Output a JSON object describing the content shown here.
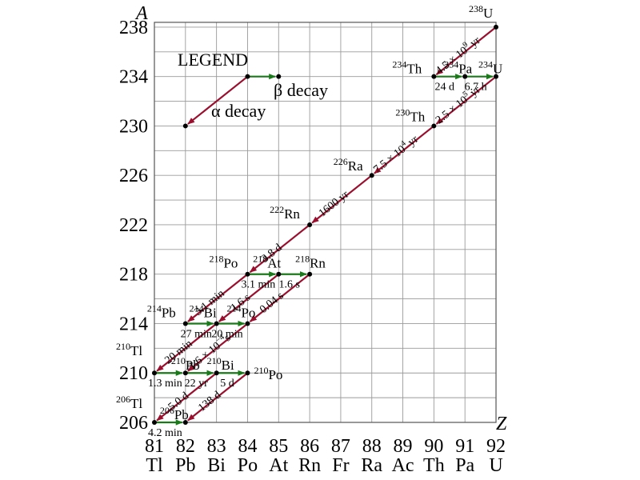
{
  "chart_data": {
    "type": "diagram",
    "title": "",
    "xlabel": "Z",
    "ylabel": "A",
    "xlim": [
      81,
      92
    ],
    "ylim": [
      206,
      238
    ],
    "x_ticks": [
      {
        "z": 81,
        "symbol": "Tl"
      },
      {
        "z": 82,
        "symbol": "Pb"
      },
      {
        "z": 83,
        "symbol": "Bi"
      },
      {
        "z": 84,
        "symbol": "Po"
      },
      {
        "z": 85,
        "symbol": "At"
      },
      {
        "z": 86,
        "symbol": "Rn"
      },
      {
        "z": 87,
        "symbol": "Fr"
      },
      {
        "z": 88,
        "symbol": "Ra"
      },
      {
        "z": 89,
        "symbol": "Ac"
      },
      {
        "z": 90,
        "symbol": "Th"
      },
      {
        "z": 91,
        "symbol": "Pa"
      },
      {
        "z": 92,
        "symbol": "U"
      }
    ],
    "y_ticks": [
      206,
      210,
      214,
      218,
      222,
      226,
      230,
      234,
      238
    ],
    "colors": {
      "alpha": "#9b0f2e",
      "beta": "#1a7a1a",
      "grid": "#9a9a9a",
      "point": "#000000"
    },
    "legend": {
      "title": "LEGEND",
      "alpha": "α decay",
      "beta": "β decay",
      "alpha_from": [
        84,
        234
      ],
      "alpha_to": [
        82,
        230
      ],
      "beta_from": [
        84,
        234
      ],
      "beta_to": [
        85,
        234
      ]
    },
    "nuclides": [
      {
        "mass": "238",
        "sym": "U",
        "z": 92,
        "a": 238,
        "dx": -34,
        "dy": -12
      },
      {
        "mass": "234",
        "sym": "Th",
        "z": 90,
        "a": 234,
        "dx": -52,
        "dy": -4
      },
      {
        "mass": "234",
        "sym": "Pa",
        "z": 91,
        "a": 234,
        "dx": -26,
        "dy": -4
      },
      {
        "mass": "234",
        "sym": "U",
        "z": 92,
        "a": 234,
        "dx": -22,
        "dy": -4
      },
      {
        "mass": "230",
        "sym": "Th",
        "z": 90,
        "a": 230,
        "dx": -48,
        "dy": -6
      },
      {
        "mass": "226",
        "sym": "Ra",
        "z": 88,
        "a": 226,
        "dx": -48,
        "dy": -6
      },
      {
        "mass": "222",
        "sym": "Rn",
        "z": 86,
        "a": 222,
        "dx": -50,
        "dy": -8
      },
      {
        "mass": "218",
        "sym": "Po",
        "z": 84,
        "a": 218,
        "dx": -48,
        "dy": -8
      },
      {
        "mass": "218",
        "sym": "At",
        "z": 85,
        "a": 218,
        "dx": -32,
        "dy": -8
      },
      {
        "mass": "218",
        "sym": "Rn",
        "z": 86,
        "a": 218,
        "dx": -18,
        "dy": -8
      },
      {
        "mass": "214",
        "sym": "Pb",
        "z": 82,
        "a": 214,
        "dx": -48,
        "dy": -8
      },
      {
        "mass": "214",
        "sym": "Bi",
        "z": 83,
        "a": 214,
        "dx": -34,
        "dy": -8
      },
      {
        "mass": "214",
        "sym": "Po",
        "z": 84,
        "a": 214,
        "dx": -26,
        "dy": -8
      },
      {
        "mass": "210",
        "sym": "Tl",
        "z": 81,
        "a": 210,
        "dx": -48,
        "dy": -22
      },
      {
        "mass": "210",
        "sym": "Pb",
        "z": 82,
        "a": 210,
        "dx": -18,
        "dy": -4
      },
      {
        "mass": "210",
        "sym": "Bi",
        "z": 83,
        "a": 210,
        "dx": -12,
        "dy": -4
      },
      {
        "mass": "210",
        "sym": "Po",
        "z": 84,
        "a": 210,
        "dx": 8,
        "dy": 8
      },
      {
        "mass": "206",
        "sym": "Tl",
        "z": 81,
        "a": 206,
        "dx": -48,
        "dy": -18
      },
      {
        "mass": "206",
        "sym": "Pb",
        "z": 82,
        "a": 206,
        "dx": -32,
        "dy": -4
      }
    ],
    "alpha_decays": [
      {
        "from": [
          92,
          238
        ],
        "to": [
          90,
          234
        ],
        "label": "4.5 × 10",
        "exp": "9",
        "unit": " yr"
      },
      {
        "from": [
          92,
          234
        ],
        "to": [
          90,
          230
        ],
        "label": "2.5 × 10",
        "exp": "5",
        "unit": " yr"
      },
      {
        "from": [
          90,
          230
        ],
        "to": [
          88,
          226
        ],
        "label": "7.5 × 10",
        "exp": "4",
        "unit": " yr"
      },
      {
        "from": [
          88,
          226
        ],
        "to": [
          86,
          222
        ],
        "label": "1600 yr",
        "exp": "",
        "unit": ""
      },
      {
        "from": [
          86,
          222
        ],
        "to": [
          84,
          218
        ],
        "label": "3.8 d",
        "exp": "",
        "unit": ""
      },
      {
        "from": [
          84,
          218
        ],
        "to": [
          82,
          214
        ],
        "label": "3.1 min",
        "exp": "",
        "unit": ""
      },
      {
        "from": [
          85,
          218
        ],
        "to": [
          83,
          214
        ],
        "label": "1.6 s",
        "exp": "",
        "unit": ""
      },
      {
        "from": [
          86,
          218
        ],
        "to": [
          84,
          214
        ],
        "label": "0.04 s",
        "exp": "",
        "unit": ""
      },
      {
        "from": [
          83,
          214
        ],
        "to": [
          81,
          210
        ],
        "label": "20 min",
        "exp": "",
        "unit": ""
      },
      {
        "from": [
          84,
          214
        ],
        "to": [
          82,
          210
        ],
        "label": "1.6 × 10",
        "exp": "−4",
        "unit": "s"
      },
      {
        "from": [
          83,
          210
        ],
        "to": [
          81,
          206
        ],
        "label": "5.0 d",
        "exp": "",
        "unit": ""
      },
      {
        "from": [
          84,
          210
        ],
        "to": [
          82,
          206
        ],
        "label": "138 d",
        "exp": "",
        "unit": ""
      }
    ],
    "beta_decays": [
      {
        "from": [
          90,
          234
        ],
        "to": [
          91,
          234
        ],
        "label": "24 d"
      },
      {
        "from": [
          91,
          234
        ],
        "to": [
          92,
          234
        ],
        "label": "6.7 h"
      },
      {
        "from": [
          84,
          218
        ],
        "to": [
          85,
          218
        ],
        "label": "3.1 min"
      },
      {
        "from": [
          85,
          218
        ],
        "to": [
          86,
          218
        ],
        "label": "1.6 s"
      },
      {
        "from": [
          82,
          214
        ],
        "to": [
          83,
          214
        ],
        "label": "27 min"
      },
      {
        "from": [
          83,
          214
        ],
        "to": [
          84,
          214
        ],
        "label": "20 min"
      },
      {
        "from": [
          81,
          210
        ],
        "to": [
          82,
          210
        ],
        "label": "1.3 min"
      },
      {
        "from": [
          82,
          210
        ],
        "to": [
          83,
          210
        ],
        "label": "22 yr"
      },
      {
        "from": [
          83,
          210
        ],
        "to": [
          84,
          210
        ],
        "label": "5 d"
      },
      {
        "from": [
          81,
          206
        ],
        "to": [
          82,
          206
        ],
        "label": "4.2 min"
      }
    ]
  }
}
